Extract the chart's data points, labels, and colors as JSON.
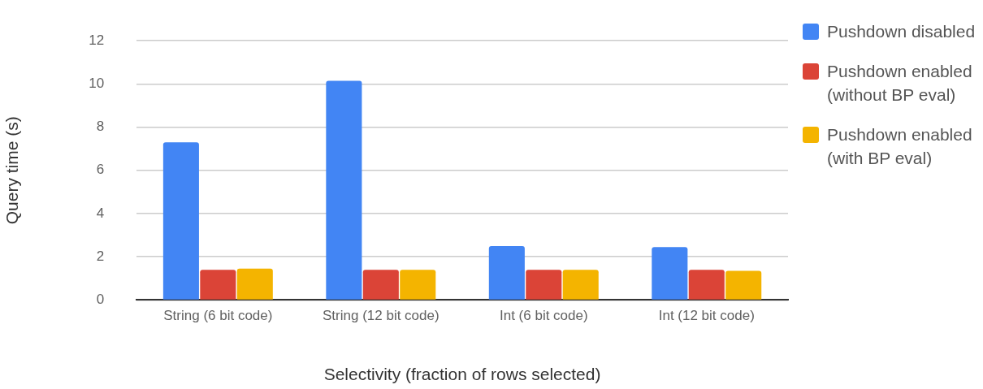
{
  "chart_data": {
    "type": "bar",
    "xlabel": "Selectivity (fraction of rows selected)",
    "ylabel": "Query time (s)",
    "categories": [
      "String (6 bit code)",
      "String (12 bit code)",
      "Int (6 bit code)",
      "Int (12 bit code)"
    ],
    "series": [
      {
        "name": "Pushdown disabled",
        "color": "#4285f4",
        "values": [
          7.3,
          10.15,
          2.5,
          2.45
        ]
      },
      {
        "name": "Pushdown enabled (without BP eval)",
        "color": "#db4437",
        "values": [
          1.4,
          1.4,
          1.4,
          1.4
        ]
      },
      {
        "name": "Pushdown enabled (with BP eval)",
        "color": "#f4b400",
        "values": [
          1.45,
          1.4,
          1.4,
          1.35
        ]
      }
    ],
    "ylim": [
      0,
      12
    ],
    "yticks": [
      0,
      2,
      4,
      6,
      8,
      10,
      12
    ],
    "grid": "y",
    "legend": "right"
  }
}
